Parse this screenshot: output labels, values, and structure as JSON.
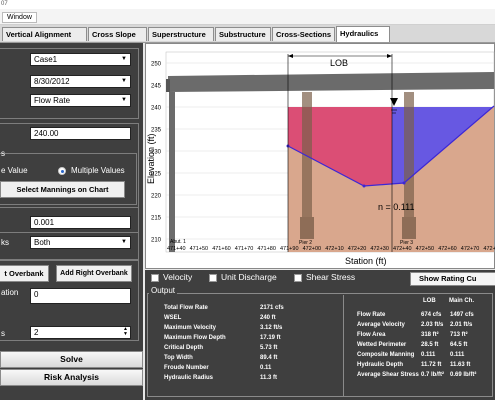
{
  "window": {
    "title_fragment": "07",
    "menu": [
      "Window"
    ]
  },
  "tabs": [
    {
      "label": "Vertical Alignment",
      "active": false
    },
    {
      "label": "Cross Slope",
      "active": false
    },
    {
      "label": "Superstructure",
      "active": false
    },
    {
      "label": "Substructure",
      "active": false
    },
    {
      "label": "Cross-Sections",
      "active": false
    },
    {
      "label": "Hydraulics",
      "active": true
    }
  ],
  "left": {
    "case_select": "Case1",
    "date_select": "8/30/2012",
    "type_select": "Flow Rate",
    "flow_value": "240.00",
    "mannings_label": "s",
    "single_value_label": "e Value",
    "multiple_values_label": "Multiple Values",
    "multiple_values_selected": true,
    "select_mannings_button": "Select Mannings on Chart",
    "slope_value": "0.001",
    "banks_label": "ks",
    "banks_select": "Both",
    "add_left_overbank_button": "t Overbank",
    "add_right_overbank_button": "Add Right Overbank",
    "elevation_label": "ation",
    "elevation_value": "0",
    "count_label": "s",
    "count_value": "2",
    "solve_button": "Solve",
    "risk_button": "Risk Analysis"
  },
  "chart_data": {
    "type": "area",
    "ylabel": "Elevation (ft)",
    "xlabel": "Station (ft)",
    "ylim": [
      210,
      250
    ],
    "yticks": [
      210,
      215,
      220,
      225,
      230,
      235,
      240,
      245,
      250
    ],
    "xtick_labels": [
      "471+40",
      "471+50",
      "471+60",
      "471+70",
      "471+80",
      "471+90",
      "472+00",
      "472+10",
      "472+20",
      "472+30",
      "472+40",
      "472+50",
      "472+60",
      "472+70",
      "472+8"
    ],
    "annotations": {
      "lob": "LOB",
      "mannings_n": "n = 0.111",
      "abutment": "Abut. 1",
      "pier2": "Pier 2",
      "pier3": "Pier 3"
    },
    "colors": {
      "deck": "#6b6b6b",
      "ground": "#d9a78d",
      "left_flow": "#d9456e",
      "main_flow": "#5f4fe0",
      "profile_line": "#3c27d6"
    },
    "ground_profile": [
      {
        "x": "471+82",
        "y": 231.5
      },
      {
        "x": "472+21",
        "y": 223.2
      },
      {
        "x": "472+42",
        "y": 225.0
      },
      {
        "x": "472+78",
        "y": 240.0
      }
    ],
    "wsel": 240
  },
  "controls": {
    "velocity_label": "Velocity",
    "unit_discharge_label": "Unit Discharge",
    "shear_stress_label": "Shear Stress",
    "show_rating_button": "Show Rating Cu"
  },
  "output": {
    "title": "Output",
    "left_rows": [
      {
        "label": "Total Flow Rate",
        "value": "2171 cfs"
      },
      {
        "label": "WSEL",
        "value": "240 ft"
      },
      {
        "label": "Maximum Velocity",
        "value": "3.12 ft/s"
      },
      {
        "label": "Maximum Flow Depth",
        "value": "17.19 ft"
      },
      {
        "label": "Critical Depth",
        "value": "5.73 ft"
      },
      {
        "label": "Top Width",
        "value": "89.4 ft"
      },
      {
        "label": "Froude Number",
        "value": "0.11"
      },
      {
        "label": "Hydraulic Radius",
        "value": "11.3 ft"
      }
    ],
    "right_headers": [
      "LOB",
      "Main Ch."
    ],
    "right_rows": [
      {
        "label": "Flow Rate",
        "lob": "674 cfs",
        "main": "1497 cfs"
      },
      {
        "label": "Average Velocity",
        "lob": "2.03 ft/s",
        "main": "2.01 ft/s"
      },
      {
        "label": "Flow Area",
        "lob": "318 ft²",
        "main": "713 ft²"
      },
      {
        "label": "Wetted Perimeter",
        "lob": "28.5 ft",
        "main": "64.5 ft"
      },
      {
        "label": "Composite Manning",
        "lob": "0.111",
        "main": "0.111"
      },
      {
        "label": "Hydraulic Depth",
        "lob": "11.72 ft",
        "main": "11.63 ft"
      },
      {
        "label": "Average Shear Stress",
        "lob": "0.7 lb/ft²",
        "main": "0.69 lb/ft²"
      }
    ]
  }
}
